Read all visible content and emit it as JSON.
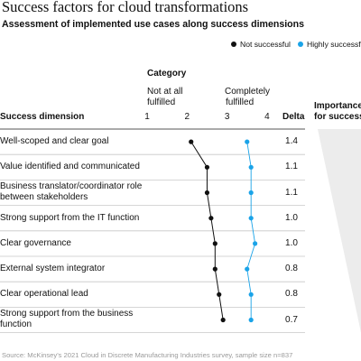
{
  "title": "Success factors for cloud transformations",
  "subtitle": "Assessment of implemented use cases along success dimensions",
  "legend": [
    {
      "label": "Not successful",
      "color": "#111111"
    },
    {
      "label": "Highly successful",
      "color": "#1aa3e8"
    }
  ],
  "headers": {
    "category": "Category",
    "not_at_all_line1": "Not at all",
    "not_at_all_line2": "fulfilled",
    "completely_line1": "Completely",
    "completely_line2": "fulfilled",
    "success_dimension": "Success dimension",
    "delta": "Delta",
    "importance_line1": "Importance",
    "importance_line2": "for success"
  },
  "source": "Source: McKinsey's 2021 Cloud in Discrete Manufacturing Industries survey, sample size n=837",
  "chart_data": {
    "type": "scatter",
    "title": "Success factors for cloud transformations",
    "subtitle": "Assessment of implemented use cases along success dimensions",
    "xlabel": "Category",
    "x_ticks": [
      1,
      2,
      3,
      4
    ],
    "xlim": [
      1,
      4
    ],
    "categories": [
      "Well-scoped and clear goal",
      "Value identified and communicated",
      "Business translator/coordinator role between stakeholders",
      "Strong support from the IT function",
      "Clear governance",
      "External system integrator",
      "Clear operational lead",
      "Strong support from the business function"
    ],
    "series": [
      {
        "name": "Not successful",
        "color": "#111111",
        "values": [
          2.1,
          2.5,
          2.5,
          2.6,
          2.7,
          2.7,
          2.8,
          2.9
        ]
      },
      {
        "name": "Highly successful",
        "color": "#1aa3e8",
        "values": [
          3.5,
          3.6,
          3.6,
          3.6,
          3.7,
          3.5,
          3.6,
          3.6
        ]
      }
    ],
    "delta": [
      "1.4",
      "1.1",
      "1.1",
      "1.0",
      "1.0",
      "0.8",
      "0.8",
      "0.7"
    ],
    "grid": true,
    "legend_position": "top-right"
  }
}
